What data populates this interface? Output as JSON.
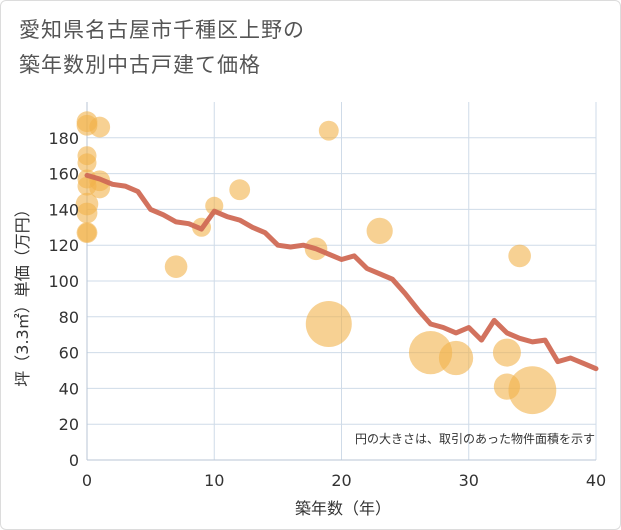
{
  "title_lines": [
    "愛知県名古屋市千種区上野の",
    "築年数別中古戸建て価格"
  ],
  "chart_data": {
    "type": "scatter+line",
    "title": "愛知県名古屋市千種区上野の築年数別中古戸建て価格",
    "xlabel": "築年数（年）",
    "ylabel": "坪（3.3㎡）単価（万円）",
    "xlim": [
      0,
      40
    ],
    "ylim": [
      0,
      200
    ],
    "xticks": [
      0,
      10,
      20,
      30,
      40
    ],
    "yticks": [
      0,
      20,
      40,
      60,
      80,
      100,
      120,
      140,
      160,
      180
    ],
    "grid": true,
    "note": "円の大きさは、取引のあった物件面積を示す",
    "colors": {
      "bubble": "#f2b24b",
      "line": "#d06a55",
      "grid": "#cfdbe8"
    },
    "bubbles": [
      {
        "x": 0,
        "y": 189,
        "size": 1.2
      },
      {
        "x": 0,
        "y": 187,
        "size": 1.2
      },
      {
        "x": 1,
        "y": 186,
        "size": 1.2
      },
      {
        "x": 0,
        "y": 170,
        "size": 1.0
      },
      {
        "x": 0,
        "y": 166,
        "size": 1.0
      },
      {
        "x": 0,
        "y": 157,
        "size": 1.0
      },
      {
        "x": 0,
        "y": 153,
        "size": 1.0
      },
      {
        "x": 1,
        "y": 156,
        "size": 1.2
      },
      {
        "x": 1,
        "y": 152,
        "size": 1.2
      },
      {
        "x": 0,
        "y": 143,
        "size": 1.4
      },
      {
        "x": 0,
        "y": 138,
        "size": 1.2
      },
      {
        "x": 0,
        "y": 127,
        "size": 1.2
      },
      {
        "x": 0,
        "y": 127,
        "size": 1.0
      },
      {
        "x": 7,
        "y": 108,
        "size": 1.4
      },
      {
        "x": 9,
        "y": 130,
        "size": 1.0
      },
      {
        "x": 10,
        "y": 142,
        "size": 0.9
      },
      {
        "x": 12,
        "y": 151,
        "size": 1.2
      },
      {
        "x": 18,
        "y": 118,
        "size": 1.4
      },
      {
        "x": 19,
        "y": 184,
        "size": 1.1
      },
      {
        "x": 19,
        "y": 76,
        "size": 4.0
      },
      {
        "x": 23,
        "y": 128,
        "size": 1.8
      },
      {
        "x": 27,
        "y": 60,
        "size": 3.7
      },
      {
        "x": 29,
        "y": 57,
        "size": 2.7
      },
      {
        "x": 33,
        "y": 60,
        "size": 2.0
      },
      {
        "x": 33,
        "y": 41,
        "size": 1.8
      },
      {
        "x": 34,
        "y": 114,
        "size": 1.4
      },
      {
        "x": 35,
        "y": 39,
        "size": 4.2
      }
    ],
    "line": {
      "x": [
        0,
        1,
        2,
        3,
        4,
        5,
        6,
        7,
        8,
        9,
        10,
        11,
        12,
        13,
        14,
        15,
        16,
        17,
        18,
        19,
        20,
        21,
        22,
        23,
        24,
        25,
        26,
        27,
        28,
        29,
        30,
        31,
        32,
        33,
        34,
        35,
        36,
        37,
        38,
        39,
        40
      ],
      "y": [
        159,
        157,
        154,
        153,
        150,
        140,
        137,
        133,
        132,
        129,
        139,
        136,
        134,
        130,
        127,
        120,
        119,
        120,
        118,
        115,
        112,
        114,
        107,
        104,
        101,
        93,
        84,
        76,
        74,
        71,
        74,
        67,
        78,
        71,
        68,
        66,
        67,
        55,
        57,
        54,
        51
      ]
    }
  }
}
